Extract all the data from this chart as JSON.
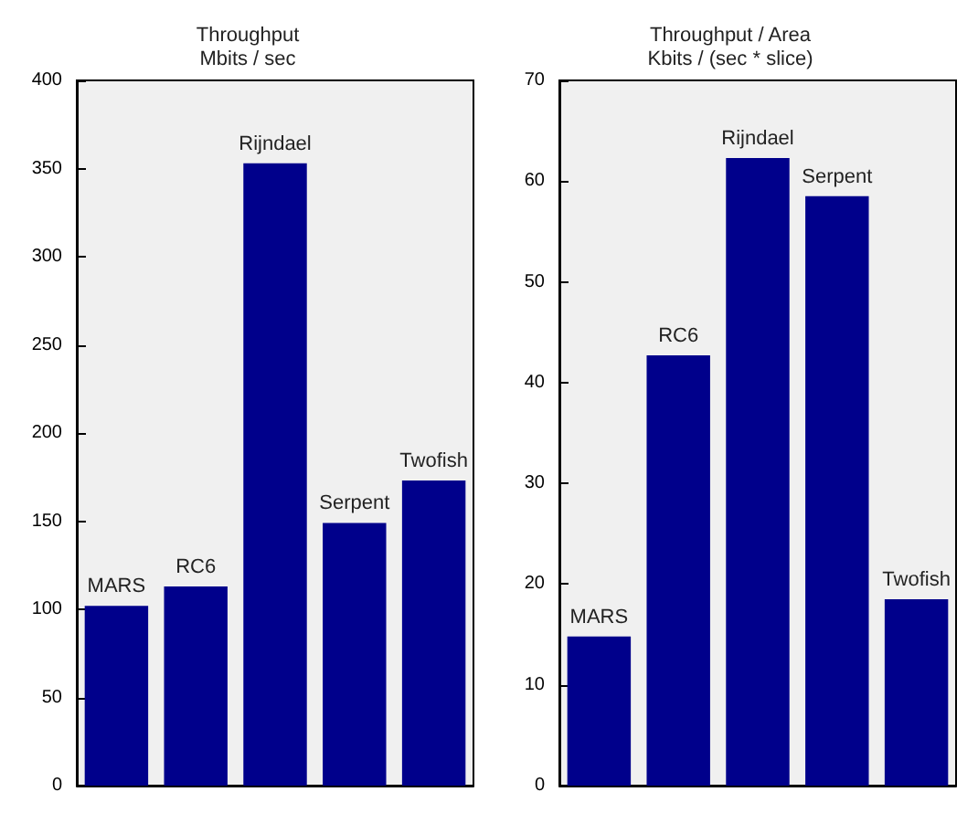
{
  "chart_data": [
    {
      "type": "bar",
      "title": "Throughput\nMbits / sec",
      "categories": [
        "MARS",
        "RC6",
        "Rijndael",
        "Serpent",
        "Twofish"
      ],
      "values": [
        102,
        113,
        353,
        149,
        173
      ],
      "color": "#00008b",
      "ylim": [
        0,
        400
      ],
      "yticks": [
        0,
        50,
        100,
        150,
        200,
        250,
        300,
        350,
        400
      ],
      "grid": false,
      "tick_labels": "y"
    },
    {
      "type": "bar",
      "title": "Throughput / Area\nKbits / (sec * slice)",
      "categories": [
        "MARS",
        "RC6",
        "Rijndael",
        "Serpent",
        "Twofish"
      ],
      "values": [
        14.8,
        42.7,
        62.3,
        58.5,
        18.5
      ],
      "color": "#00008b",
      "ylim": [
        0,
        70
      ],
      "yticks": [
        0,
        10,
        20,
        30,
        40,
        50,
        60,
        70
      ],
      "grid": false,
      "tick_labels": "y"
    }
  ]
}
